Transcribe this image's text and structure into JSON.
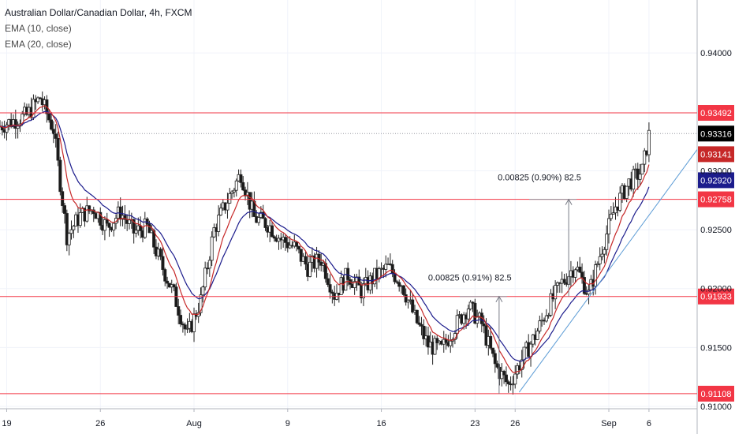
{
  "chart_data": {
    "type": "candlestick",
    "title": "Australian Dollar/Canadian Dollar, 4h, FXCM",
    "indicators": [
      "EMA (10, close)",
      "EMA (20, close)"
    ],
    "ylim": [
      0.9098,
      0.9445
    ],
    "y_ticks": [
      "0.94000",
      "0.93000",
      "0.92500",
      "0.92000",
      "0.91500",
      "0.91000"
    ],
    "y_tick_values": [
      0.94,
      0.93,
      0.925,
      0.92,
      0.915,
      0.91
    ],
    "x_ticks": [
      "19",
      "26",
      "Aug",
      "9",
      "16",
      "23",
      "26",
      "Sep",
      "6"
    ],
    "x_tick_days": [
      19,
      26,
      33,
      40,
      47,
      54,
      57,
      64,
      67
    ],
    "x_range_days": [
      18.5,
      70.6
    ],
    "last_price": {
      "label": "0.93316",
      "value": 0.93316,
      "color": "#000000"
    },
    "ema10": {
      "label": "0.93141",
      "value": 0.93141,
      "color": "#c62828"
    },
    "ema20": {
      "label": "0.92920",
      "value": 0.9292,
      "color": "#1c1c8c"
    },
    "horizontal_levels": [
      {
        "label": "0.93492",
        "value": 0.93492
      },
      {
        "label": "0.92758",
        "value": 0.92758
      },
      {
        "label": "0.91933",
        "value": 0.91933
      },
      {
        "label": "0.91108",
        "value": 0.91108
      }
    ],
    "level_color": "#f23645",
    "measurements": [
      {
        "label": "0.00825 (0.91%) 82.5",
        "day": 55.8,
        "from": 0.91108,
        "to": 0.91933
      },
      {
        "label": "0.00825 (0.90%) 82.5",
        "day": 61.0,
        "from": 0.91933,
        "to": 0.92758
      }
    ],
    "trendline": {
      "start_day": 57.3,
      "start_value": 0.9112,
      "end_day": 70.6,
      "end_value": 0.9318,
      "color": "#5b9bd5"
    },
    "key_prices": [
      [
        18.5,
        0.9338
      ],
      [
        20.5,
        0.9347
      ],
      [
        21.5,
        0.9362
      ],
      [
        22.5,
        0.9335
      ],
      [
        23.5,
        0.9245
      ],
      [
        24.5,
        0.9262
      ],
      [
        25.5,
        0.9268
      ],
      [
        26.5,
        0.9252
      ],
      [
        27.5,
        0.9265
      ],
      [
        28.5,
        0.9248
      ],
      [
        29.5,
        0.9252
      ],
      [
        30.5,
        0.9222
      ],
      [
        31.5,
        0.9195
      ],
      [
        32.5,
        0.916
      ],
      [
        33.5,
        0.919
      ],
      [
        34.5,
        0.925
      ],
      [
        35.5,
        0.9275
      ],
      [
        36.5,
        0.9298
      ],
      [
        37.5,
        0.926
      ],
      [
        38.5,
        0.9255
      ],
      [
        39.5,
        0.9242
      ],
      [
        40.5,
        0.9235
      ],
      [
        41.5,
        0.9218
      ],
      [
        42.5,
        0.9225
      ],
      [
        43.5,
        0.9195
      ],
      [
        44.5,
        0.9212
      ],
      [
        45.5,
        0.9198
      ],
      [
        46.5,
        0.921
      ],
      [
        47.5,
        0.9218
      ],
      [
        48.5,
        0.9205
      ],
      [
        49.5,
        0.9175
      ],
      [
        50.5,
        0.9152
      ],
      [
        51.5,
        0.9148
      ],
      [
        52.5,
        0.9168
      ],
      [
        53.5,
        0.9185
      ],
      [
        54.5,
        0.917
      ],
      [
        55.5,
        0.9135
      ],
      [
        56.5,
        0.9118
      ],
      [
        57.5,
        0.914
      ],
      [
        58.5,
        0.916
      ],
      [
        59.5,
        0.9185
      ],
      [
        60.5,
        0.9205
      ],
      [
        61.5,
        0.922
      ],
      [
        62.5,
        0.9195
      ],
      [
        63.5,
        0.9235
      ],
      [
        64.5,
        0.927
      ],
      [
        65.5,
        0.929
      ],
      [
        66.5,
        0.93
      ],
      [
        67.0,
        0.933
      ]
    ],
    "colors": {
      "up": "#26a69a",
      "down": "#333333",
      "candle_body": "#1a1a1a",
      "grid": "#f0f3fa",
      "axis_text": "#131722"
    }
  }
}
